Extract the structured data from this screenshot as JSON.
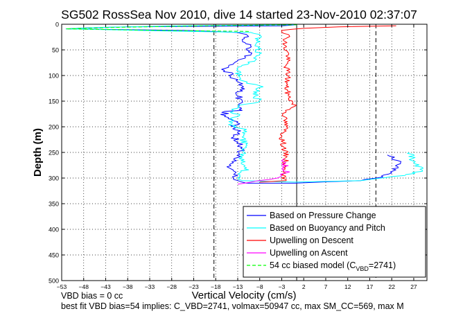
{
  "chart_data": {
    "type": "line",
    "title": "SG502 RossSea Nov 2010, dive 14 started 23-Nov-2010 02:37:07",
    "xlabel": "Vertical Velocity (cm/s)",
    "ylabel": "Depth (m)",
    "xlim": [
      -53,
      30
    ],
    "ylim": [
      500,
      0
    ],
    "y_reversed": true,
    "grid": true,
    "legend_placement": "bottom-right",
    "x_ticks": [
      -53,
      -48,
      -43,
      -38,
      -33,
      -28,
      -23,
      -18,
      -13,
      -8,
      -3,
      2,
      7,
      12,
      17,
      22,
      27
    ],
    "y_ticks": [
      0,
      50,
      100,
      150,
      200,
      250,
      300,
      350,
      400,
      450,
      500
    ],
    "vertical_lines": [
      {
        "x": -18.4,
        "style": "dashed",
        "color": "#000000"
      },
      {
        "x": 0.4,
        "style": "solid",
        "color": "#000000"
      },
      {
        "x": 18.4,
        "style": "dashed",
        "color": "#000000"
      }
    ],
    "series": [
      {
        "name": "Based on Pressure Change",
        "color": "#0000ff",
        "style": "solid",
        "x": [
          0.5,
          -3,
          -38,
          -47,
          -52,
          -25,
          -13,
          -11,
          -12,
          -10,
          -11,
          -10,
          -13,
          -15,
          -16,
          -14,
          -15,
          -13,
          -12,
          -13,
          -12,
          -13,
          -12,
          -16,
          -16,
          -13,
          -14,
          -13,
          -14,
          -12,
          -13,
          -15,
          -13,
          -14,
          -13,
          -12,
          -11,
          0,
          15,
          20,
          22,
          24,
          21
        ],
        "y": [
          1,
          3,
          5,
          7,
          9,
          12,
          16,
          20,
          30,
          40,
          50,
          60,
          70,
          80,
          90,
          97,
          100,
          108,
          120,
          140,
          150,
          160,
          168,
          170,
          180,
          190,
          200,
          210,
          220,
          240,
          260,
          280,
          295,
          300,
          305,
          308,
          310,
          310,
          305,
          298,
          290,
          270,
          255
        ]
      },
      {
        "name": "Based on Buoyancy and Pitch",
        "color": "#00ffff",
        "style": "solid",
        "x": [
          0.5,
          -25,
          -44,
          -52,
          -30,
          -10,
          -8,
          -9,
          -8,
          -9,
          -12,
          -13,
          -12,
          -11,
          -8,
          -9,
          -8,
          -13,
          -14,
          -13,
          -15,
          -14,
          -11,
          -12,
          -11,
          -12,
          -11,
          -13,
          -12,
          0,
          15,
          25,
          29,
          27,
          26
        ],
        "y": [
          1,
          3,
          6,
          9,
          13,
          16,
          20,
          40,
          60,
          70,
          80,
          100,
          110,
          115,
          120,
          140,
          150,
          160,
          170,
          180,
          190,
          200,
          205,
          220,
          240,
          260,
          280,
          300,
          305,
          308,
          305,
          295,
          285,
          270,
          250
        ]
      },
      {
        "name": "Upwelling on Descent",
        "color": "#ff0000",
        "style": "solid",
        "x": [
          23,
          10,
          2,
          -3,
          -1.5,
          -2.5,
          -1.5,
          -2,
          -1.5,
          -2,
          -1.5,
          0,
          -2,
          -2.5,
          -2,
          -3,
          -2.5,
          -2,
          -2.5,
          -2,
          -3,
          -2,
          -8
        ],
        "y": [
          3,
          5,
          8,
          12,
          20,
          40,
          60,
          80,
          100,
          120,
          140,
          160,
          170,
          180,
          200,
          220,
          240,
          260,
          280,
          290,
          300,
          305,
          308
        ]
      },
      {
        "name": "Upwelling on Ascent",
        "color": "#ff00ff",
        "style": "solid",
        "x": [
          -13,
          -10,
          -6,
          -4,
          -3,
          -2,
          -2.5,
          -2,
          -2.5
        ],
        "y": [
          312,
          308,
          303,
          300,
          295,
          290,
          280,
          270,
          262
        ]
      },
      {
        "name": "54 cc biased model (CVBD=2741)",
        "color": "#00ff00",
        "style": "dashed",
        "x": [
          0.5,
          -20,
          -40,
          -52,
          -30,
          -10
        ],
        "y": [
          1,
          3,
          6,
          9,
          12,
          14
        ]
      }
    ],
    "legend": [
      {
        "text": "Based on Pressure Change",
        "color": "#0000ff",
        "style": "solid"
      },
      {
        "text": "Based on Buoyancy and Pitch",
        "color": "#00ffff",
        "style": "solid"
      },
      {
        "text": "Upwelling on Descent",
        "color": "#ff0000",
        "style": "solid"
      },
      {
        "text": "Upwelling on Ascent",
        "color": "#ff00ff",
        "style": "solid"
      },
      {
        "text_main": "54 cc biased model (C",
        "text_sub": "VBD",
        "text_end": "=2741)",
        "color": "#00ff00",
        "style": "dashed"
      }
    ],
    "annotations": [
      "VBD bias = 0 cc",
      "best fit VBD bias=54 implies: C_VBD=2741, volmax=50947 cc, max SM_CC=569, max M"
    ]
  }
}
